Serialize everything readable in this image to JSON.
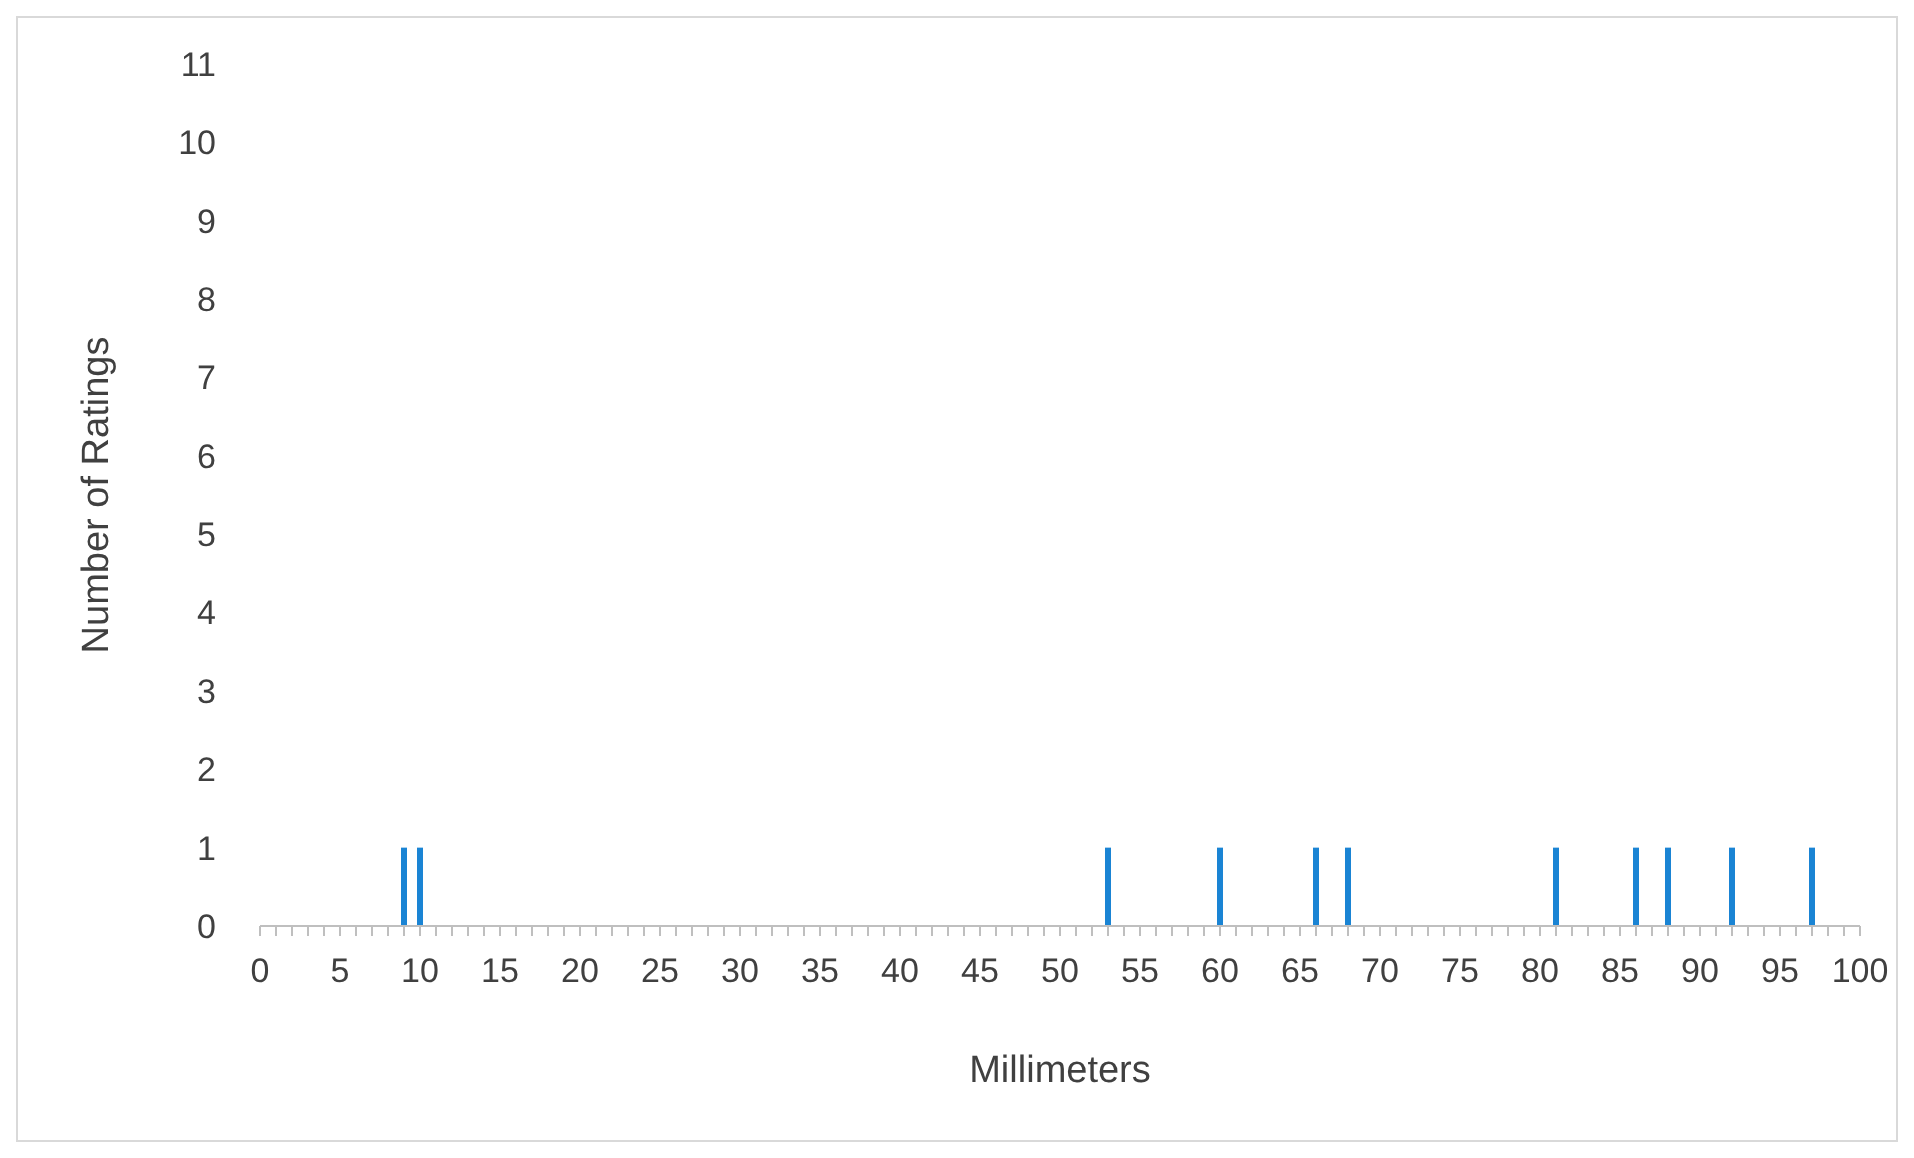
{
  "chart_data": {
    "type": "bar",
    "xlabel": "Millimeters",
    "ylabel": "Number of Ratings",
    "x": [
      9,
      10,
      53,
      60,
      66,
      68,
      81,
      86,
      88,
      92,
      97
    ],
    "values": [
      1,
      1,
      1,
      1,
      1,
      1,
      1,
      1,
      1,
      1,
      1
    ],
    "color": "#1a84d4",
    "xlim": [
      0,
      100
    ],
    "xticks": [
      0,
      {
        "value": 1,
        "label": null
      },
      {
        "value": 2,
        "label": null
      },
      {
        "value": 3,
        "label": null
      },
      {
        "value": 4,
        "label": null
      },
      5,
      {
        "value": 6,
        "label": null
      },
      {
        "value": 7,
        "label": null
      },
      {
        "value": 8,
        "label": null
      },
      {
        "value": 9,
        "label": null
      },
      10,
      {
        "value": 11,
        "label": null
      },
      {
        "value": 12,
        "label": null
      },
      {
        "value": 13,
        "label": null
      },
      {
        "value": 14,
        "label": null
      },
      15,
      {
        "value": 16,
        "label": null
      },
      {
        "value": 17,
        "label": null
      },
      {
        "value": 18,
        "label": null
      },
      {
        "value": 19,
        "label": null
      },
      20,
      {
        "value": 21,
        "label": null
      },
      {
        "value": 22,
        "label": null
      },
      {
        "value": 23,
        "label": null
      },
      {
        "value": 24,
        "label": null
      },
      25,
      {
        "value": 26,
        "label": null
      },
      {
        "value": 27,
        "label": null
      },
      {
        "value": 28,
        "label": null
      },
      {
        "value": 29,
        "label": null
      },
      30,
      {
        "value": 31,
        "label": null
      },
      {
        "value": 32,
        "label": null
      },
      {
        "value": 33,
        "label": null
      },
      {
        "value": 34,
        "label": null
      },
      35,
      {
        "value": 36,
        "label": null
      },
      {
        "value": 37,
        "label": null
      },
      {
        "value": 38,
        "label": null
      },
      {
        "value": 39,
        "label": null
      },
      40,
      {
        "value": 41,
        "label": null
      },
      {
        "value": 42,
        "label": null
      },
      {
        "value": 43,
        "label": null
      },
      {
        "value": 44,
        "label": null
      },
      45,
      {
        "value": 46,
        "label": null
      },
      {
        "value": 47,
        "label": null
      },
      {
        "value": 48,
        "label": null
      },
      {
        "value": 49,
        "label": null
      },
      50,
      {
        "value": 51,
        "label": null
      },
      {
        "value": 52,
        "label": null
      },
      {
        "value": 53,
        "label": null
      },
      {
        "value": 54,
        "label": null
      },
      55,
      {
        "value": 56,
        "label": null
      },
      {
        "value": 57,
        "label": null
      },
      {
        "value": 58,
        "label": null
      },
      {
        "value": 59,
        "label": null
      },
      60,
      {
        "value": 61,
        "label": null
      },
      {
        "value": 62,
        "label": null
      },
      {
        "value": 63,
        "label": null
      },
      {
        "value": 64,
        "label": null
      },
      65,
      {
        "value": 66,
        "label": null
      },
      {
        "value": 67,
        "label": null
      },
      {
        "value": 68,
        "label": null
      },
      {
        "value": 69,
        "label": null
      },
      70,
      {
        "value": 71,
        "label": null
      },
      {
        "value": 72,
        "label": null
      },
      {
        "value": 73,
        "label": null
      },
      {
        "value": 74,
        "label": null
      },
      75,
      {
        "value": 76,
        "label": null
      },
      {
        "value": 77,
        "label": null
      },
      {
        "value": 78,
        "label": null
      },
      {
        "value": 79,
        "label": null
      },
      80,
      {
        "value": 81,
        "label": null
      },
      {
        "value": 82,
        "label": null
      },
      {
        "value": 83,
        "label": null
      },
      {
        "value": 84,
        "label": null
      },
      85,
      {
        "value": 86,
        "label": null
      },
      {
        "value": 87,
        "label": null
      },
      {
        "value": 88,
        "label": null
      },
      {
        "value": 89,
        "label": null
      },
      90,
      {
        "value": 91,
        "label": null
      },
      {
        "value": 92,
        "label": null
      },
      {
        "value": 93,
        "label": null
      },
      {
        "value": 94,
        "label": null
      },
      95,
      {
        "value": 96,
        "label": null
      },
      {
        "value": 97,
        "label": null
      },
      {
        "value": 98,
        "label": null
      },
      {
        "value": 99,
        "label": null
      },
      100
    ],
    "ylim": [
      0,
      11
    ],
    "yticks": [
      0,
      1,
      2,
      3,
      4,
      5,
      6,
      7,
      8,
      9,
      10,
      11
    ]
  }
}
